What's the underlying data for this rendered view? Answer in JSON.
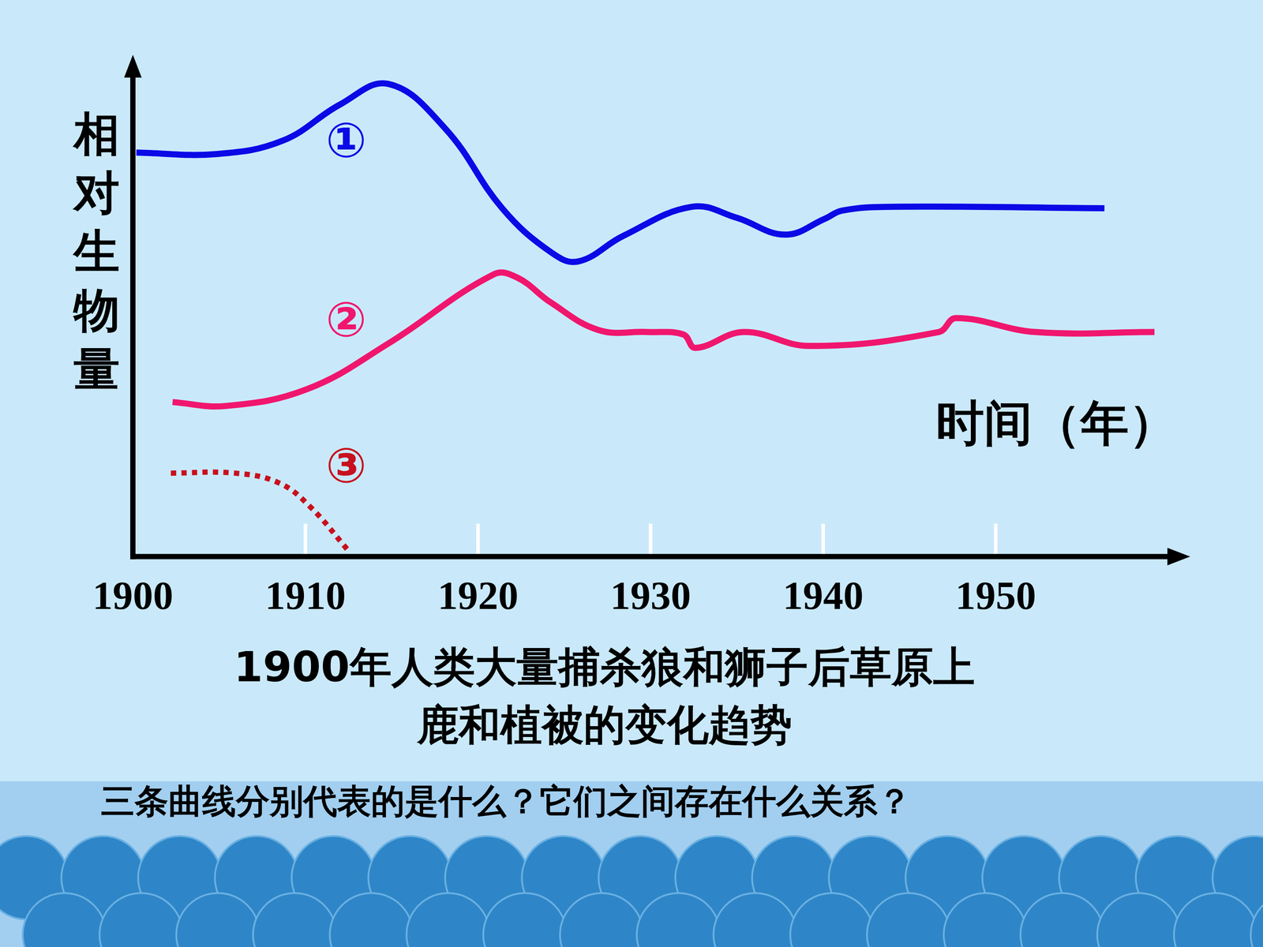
{
  "chart_data": {
    "type": "line",
    "title": "1900年人类大量捕杀狼和狮子后草原上\n鹿和植被的变化趋势",
    "x_label": "时间（年）",
    "y_label": "相对生物量",
    "annotations": [
      "三条曲线分别代表的是什么？它们之间存在什么关系？"
    ],
    "xlim": [
      1900,
      1960
    ],
    "xticks": [
      1900,
      1910,
      1920,
      1930,
      1940,
      1950
    ],
    "ylim": [
      0,
      100
    ],
    "tick_labels": "x",
    "grid": false,
    "series": [
      {
        "name": "①",
        "color": "#0a0ae6",
        "line_style": "solid",
        "x": [
          1900.2,
          1904.9,
          1908.7,
          1912.0,
          1914.8,
          1918.1,
          1921.4,
          1924.2,
          1925.8,
          1928.4,
          1932.4,
          1935.0,
          1937.8,
          1940.1,
          1941.1,
          1943.9,
          1956.3
        ],
        "values": [
          84.2,
          83.9,
          86.7,
          94.2,
          98.5,
          89.2,
          72.6,
          63.5,
          61.5,
          66.8,
          72.9,
          70.6,
          67.1,
          70.4,
          72.1,
          72.9,
          72.6
        ]
      },
      {
        "name": "②",
        "color": "#f0166e",
        "line_style": "solid",
        "x": [
          1902.3,
          1905.4,
          1910.1,
          1914.8,
          1920.9,
          1922.3,
          1924.2,
          1927.0,
          1929.8,
          1931.9,
          1932.6,
          1935.4,
          1939.2,
          1946.7,
          1947.7,
          1952.3,
          1959.2
        ],
        "values": [
          32.2,
          31.4,
          34.9,
          44.4,
          58.8,
          58.1,
          53.0,
          47.2,
          46.8,
          46.3,
          43.5,
          46.8,
          43.9,
          46.8,
          49.7,
          46.8,
          46.8
        ]
      },
      {
        "name": "③",
        "color": "#c8101e",
        "line_style": "dotted",
        "x": [
          1902.2,
          1905.9,
          1908.5,
          1910.3,
          1912.5
        ],
        "values": [
          17.4,
          17.4,
          15.3,
          10.3,
          1.2
        ]
      }
    ]
  }
}
